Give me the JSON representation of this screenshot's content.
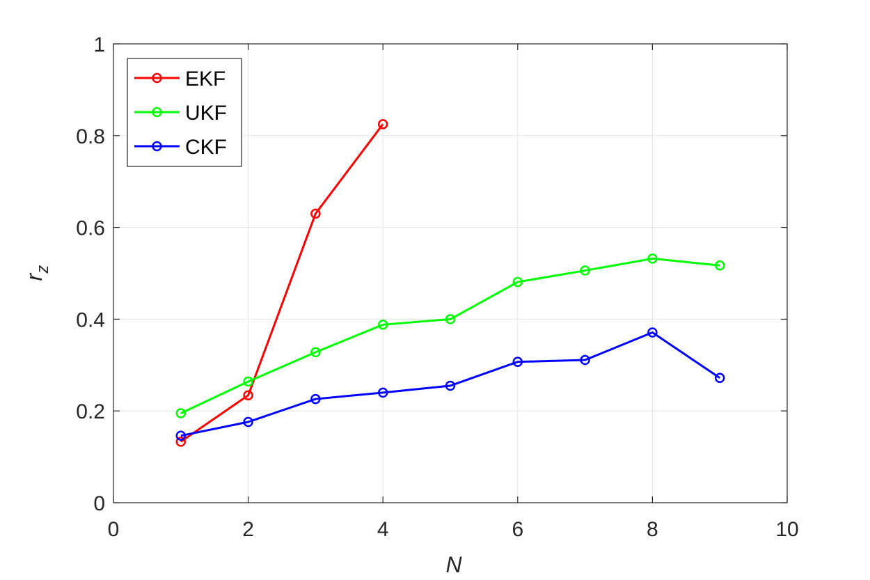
{
  "chart_data": {
    "type": "line",
    "title": "",
    "xlabel": "N",
    "ylabel_main": "r",
    "ylabel_sub": "z",
    "xlim": [
      0,
      10
    ],
    "ylim": [
      0,
      1
    ],
    "xticks": [
      0,
      2,
      4,
      6,
      8,
      10
    ],
    "yticks": [
      0,
      0.2,
      0.4,
      0.6,
      0.8,
      1
    ],
    "xtick_labels": [
      "0",
      "2",
      "4",
      "6",
      "8",
      "10"
    ],
    "ytick_labels": [
      "0",
      "0.2",
      "0.4",
      "0.6",
      "0.8",
      "1"
    ],
    "grid": true,
    "legend_position": "top-left",
    "series": [
      {
        "name": "EKF",
        "color": "#ff0000",
        "x": [
          1,
          2,
          3,
          4
        ],
        "values": [
          0.133,
          0.234,
          0.63,
          0.825
        ]
      },
      {
        "name": "UKF",
        "color": "#00ff00",
        "x": [
          1,
          2,
          3,
          4,
          5,
          6,
          7,
          8,
          9
        ],
        "values": [
          0.195,
          0.264,
          0.328,
          0.388,
          0.4,
          0.481,
          0.506,
          0.532,
          0.517
        ]
      },
      {
        "name": "CKF",
        "color": "#0000ff",
        "x": [
          1,
          2,
          3,
          4,
          5,
          6,
          7,
          8,
          9
        ],
        "values": [
          0.146,
          0.176,
          0.226,
          0.24,
          0.255,
          0.307,
          0.311,
          0.371,
          0.272
        ]
      }
    ]
  }
}
